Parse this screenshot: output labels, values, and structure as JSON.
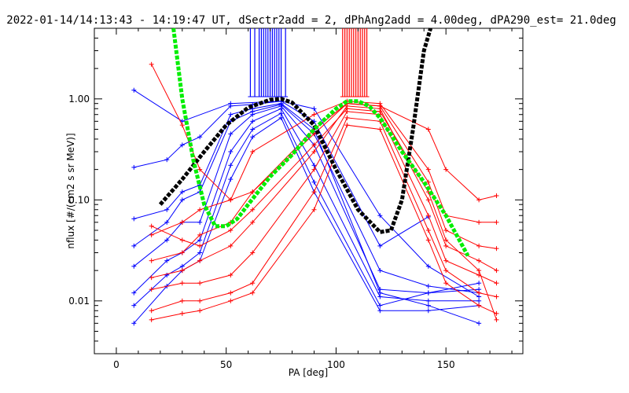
{
  "chart_data": {
    "type": "line",
    "title": "2022-01-14/14:13:43 - 14:19:47 UT, dSectr2add = 2, dPhAng2add = 4.00deg, dPA290_est= 21.0deg",
    "xlabel": "PA [deg]",
    "ylabel": "nflux [#/(cm2 s sr MeV)]",
    "xlim": [
      -10,
      185
    ],
    "ylim": [
      0.003,
      5
    ],
    "yscale": "log",
    "grid": false,
    "x_ticks": [
      0,
      50,
      100,
      150
    ],
    "x_tick_labels": [
      "0",
      "50",
      "100",
      "150"
    ],
    "y_ticks": [
      0.01,
      0.1,
      1.0
    ],
    "y_tick_labels": [
      "0.01",
      "0.10",
      "1.00"
    ],
    "colors": {
      "blue": "#0000ff",
      "red": "#ff0000",
      "black": "#000000",
      "green": "#00ee00"
    },
    "series": [
      {
        "color": "blue",
        "style": "line-plus",
        "x": [
          8,
          23,
          30,
          38,
          52,
          62,
          75,
          90,
          120,
          142,
          165
        ],
        "y": [
          0.21,
          0.25,
          0.35,
          0.42,
          0.85,
          0.88,
          0.95,
          0.8,
          0.07,
          0.022,
          0.011
        ]
      },
      {
        "color": "blue",
        "style": "line-plus",
        "x": [
          8,
          23,
          30,
          38,
          52,
          62,
          75,
          90,
          120,
          142,
          165
        ],
        "y": [
          0.065,
          0.08,
          0.12,
          0.14,
          0.7,
          0.8,
          0.9,
          0.5,
          0.012,
          0.009,
          0.006
        ]
      },
      {
        "color": "blue",
        "style": "line-plus",
        "x": [
          8,
          23,
          30,
          38,
          52,
          62,
          75,
          90,
          120,
          142,
          165
        ],
        "y": [
          0.035,
          0.06,
          0.1,
          0.12,
          0.6,
          0.75,
          0.88,
          0.45,
          0.02,
          0.014,
          0.012
        ]
      },
      {
        "color": "blue",
        "style": "line-plus",
        "x": [
          8,
          23,
          30,
          38,
          52,
          62,
          75,
          90,
          120,
          142,
          165
        ],
        "y": [
          0.022,
          0.04,
          0.06,
          0.06,
          0.45,
          0.7,
          0.85,
          0.35,
          0.013,
          0.012,
          0.013
        ]
      },
      {
        "color": "blue",
        "style": "line-plus",
        "x": [
          8,
          23,
          30,
          38,
          52,
          62,
          75,
          90,
          120,
          142,
          165
        ],
        "y": [
          0.012,
          0.025,
          0.03,
          0.04,
          0.3,
          0.6,
          0.8,
          0.22,
          0.011,
          0.01,
          0.01
        ]
      },
      {
        "color": "blue",
        "style": "line-plus",
        "x": [
          8,
          23,
          30,
          38,
          52,
          62,
          75,
          90,
          120,
          142,
          165
        ],
        "y": [
          0.009,
          0.018,
          0.022,
          0.03,
          0.22,
          0.5,
          0.72,
          0.15,
          0.009,
          0.012,
          0.015
        ]
      },
      {
        "color": "blue",
        "style": "line-plus",
        "x": [
          8,
          23,
          30,
          38,
          52,
          62,
          75,
          90,
          120,
          142,
          165
        ],
        "y": [
          0.006,
          0.014,
          0.02,
          0.025,
          0.16,
          0.42,
          0.65,
          0.12,
          0.008,
          0.008,
          0.009
        ]
      },
      {
        "color": "blue",
        "style": "line-plus",
        "x": [
          8,
          30,
          52,
          75,
          90,
          120,
          142
        ],
        "y": [
          1.22,
          0.6,
          0.9,
          0.95,
          0.6,
          0.035,
          0.068
        ]
      },
      {
        "color": "red",
        "style": "line-plus",
        "x": [
          16,
          30,
          38,
          52,
          62,
          90,
          105,
          120,
          142,
          150,
          165,
          173
        ],
        "y": [
          2.2,
          0.55,
          0.2,
          0.1,
          0.12,
          0.45,
          0.9,
          0.85,
          0.5,
          0.2,
          0.1,
          0.11
        ]
      },
      {
        "color": "red",
        "style": "line-plus",
        "x": [
          16,
          30,
          38,
          52,
          62,
          90,
          105,
          120,
          142,
          150,
          165,
          173
        ],
        "y": [
          0.045,
          0.06,
          0.08,
          0.1,
          0.3,
          0.7,
          0.95,
          0.9,
          0.2,
          0.07,
          0.06,
          0.06
        ]
      },
      {
        "color": "red",
        "style": "line-plus",
        "x": [
          16,
          30,
          38,
          52,
          62,
          90,
          105,
          120,
          142,
          150,
          165,
          173
        ],
        "y": [
          0.025,
          0.03,
          0.045,
          0.06,
          0.12,
          0.5,
          0.9,
          0.85,
          0.15,
          0.05,
          0.035,
          0.033
        ]
      },
      {
        "color": "red",
        "style": "line-plus",
        "x": [
          16,
          30,
          38,
          52,
          62,
          90,
          105,
          120,
          142,
          150,
          165,
          173
        ],
        "y": [
          0.017,
          0.02,
          0.025,
          0.035,
          0.06,
          0.3,
          0.85,
          0.8,
          0.1,
          0.035,
          0.025,
          0.02
        ]
      },
      {
        "color": "red",
        "style": "line-plus",
        "x": [
          16,
          30,
          38,
          52,
          62,
          90,
          105,
          120,
          142,
          150,
          165,
          173
        ],
        "y": [
          0.013,
          0.015,
          0.015,
          0.018,
          0.03,
          0.2,
          0.75,
          0.7,
          0.07,
          0.025,
          0.018,
          0.015
        ]
      },
      {
        "color": "red",
        "style": "line-plus",
        "x": [
          16,
          30,
          38,
          52,
          62,
          90,
          105,
          120,
          142,
          150,
          165,
          173
        ],
        "y": [
          0.008,
          0.01,
          0.01,
          0.012,
          0.015,
          0.12,
          0.65,
          0.6,
          0.05,
          0.02,
          0.012,
          0.011
        ]
      },
      {
        "color": "red",
        "style": "line-plus",
        "x": [
          16,
          30,
          38,
          52,
          62,
          90,
          105,
          120,
          142,
          150,
          165,
          173
        ],
        "y": [
          0.0065,
          0.0075,
          0.008,
          0.01,
          0.012,
          0.08,
          0.55,
          0.5,
          0.04,
          0.015,
          0.009,
          0.0075
        ]
      },
      {
        "color": "red",
        "style": "line-plus",
        "x": [
          16,
          30,
          38,
          52,
          62,
          90,
          105,
          120,
          142,
          150,
          165,
          173
        ],
        "y": [
          0.055,
          0.04,
          0.035,
          0.05,
          0.08,
          0.35,
          0.8,
          0.75,
          0.12,
          0.04,
          0.02,
          0.0065
        ]
      },
      {
        "color": "black",
        "style": "thick-dashed",
        "x": [
          20,
          30,
          40,
          50,
          60,
          70,
          75,
          80,
          90,
          100,
          110,
          120,
          125,
          130,
          135,
          140,
          143
        ],
        "y": [
          0.09,
          0.16,
          0.3,
          0.55,
          0.82,
          0.98,
          1.0,
          0.92,
          0.55,
          0.2,
          0.08,
          0.048,
          0.05,
          0.1,
          0.5,
          3.0,
          6.0
        ]
      },
      {
        "color": "green",
        "style": "thick-dashed",
        "x": [
          26,
          30,
          35,
          40,
          45,
          50,
          55,
          60,
          70,
          80,
          90,
          100,
          105,
          110,
          115,
          120,
          130,
          140,
          150,
          160
        ],
        "y": [
          6.0,
          1.0,
          0.25,
          0.09,
          0.055,
          0.055,
          0.065,
          0.09,
          0.17,
          0.28,
          0.5,
          0.8,
          0.95,
          0.95,
          0.85,
          0.65,
          0.3,
          0.15,
          0.07,
          0.028
        ]
      }
    ],
    "vertical_marks": [
      {
        "color": "blue",
        "x": [
          61,
          63,
          65,
          66,
          67,
          68,
          69,
          70,
          71,
          72,
          73,
          74,
          75,
          77
        ]
      },
      {
        "color": "red",
        "x": [
          103,
          104,
          105,
          106,
          107,
          108,
          109,
          110,
          111,
          112,
          113,
          114
        ]
      }
    ]
  }
}
